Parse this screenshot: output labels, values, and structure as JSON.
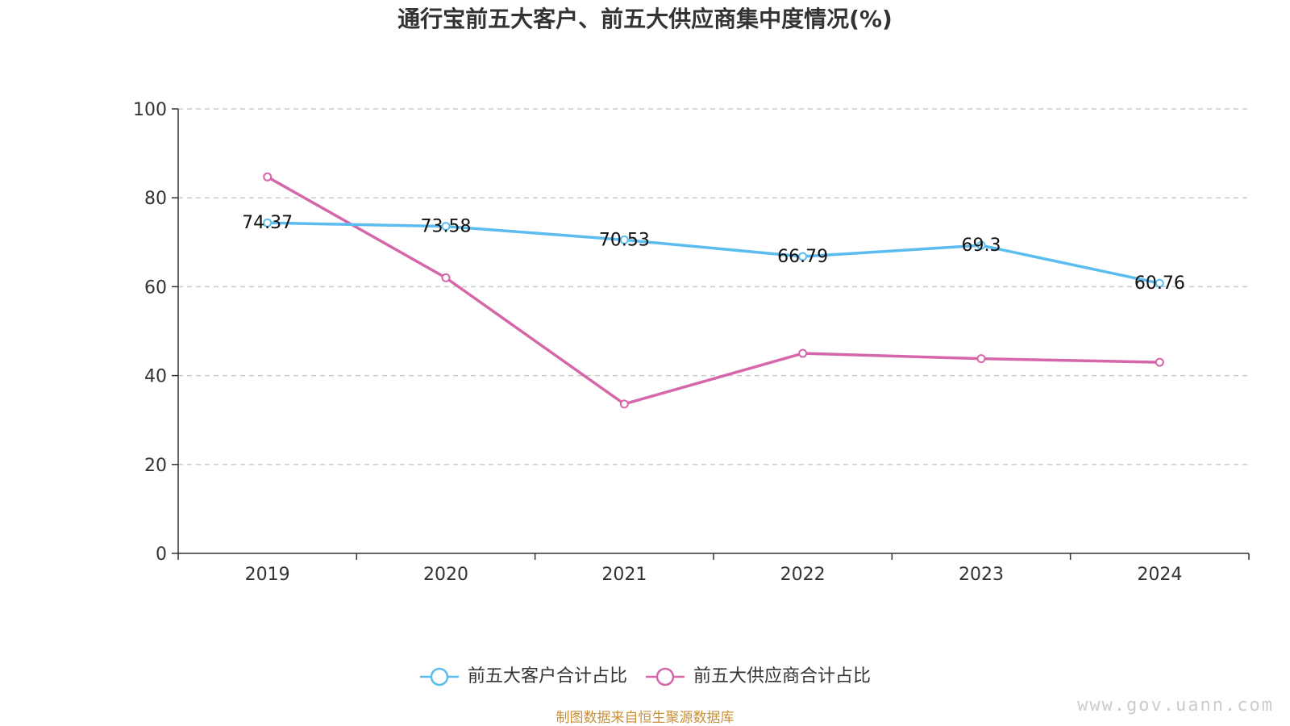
{
  "chart_data": {
    "type": "line",
    "title": "通行宝前五大客户、前五大供应商集中度情况(%)",
    "categories": [
      "2019",
      "2020",
      "2021",
      "2022",
      "2023",
      "2024"
    ],
    "ylim": [
      0,
      100
    ],
    "yticks": [
      0,
      20,
      40,
      60,
      80,
      100
    ],
    "grid": true,
    "legend_position": "bottom",
    "series": [
      {
        "name": "前五大客户合计占比",
        "color": "#5bbcf0",
        "values": [
          74.37,
          73.58,
          70.53,
          66.79,
          69.3,
          60.76
        ],
        "labels": [
          "74.37",
          "73.58",
          "70.53",
          "66.79",
          "69.3",
          "60.76"
        ],
        "show_labels": true
      },
      {
        "name": "前五大供应商合计占比",
        "color": "#d566a9",
        "values": [
          84.7,
          62.0,
          33.6,
          45.0,
          43.8,
          43.0
        ],
        "show_labels": false
      }
    ]
  },
  "footer": {
    "source": "制图数据来自恒生聚源数据库",
    "watermark": "www.gov.uann.com"
  }
}
